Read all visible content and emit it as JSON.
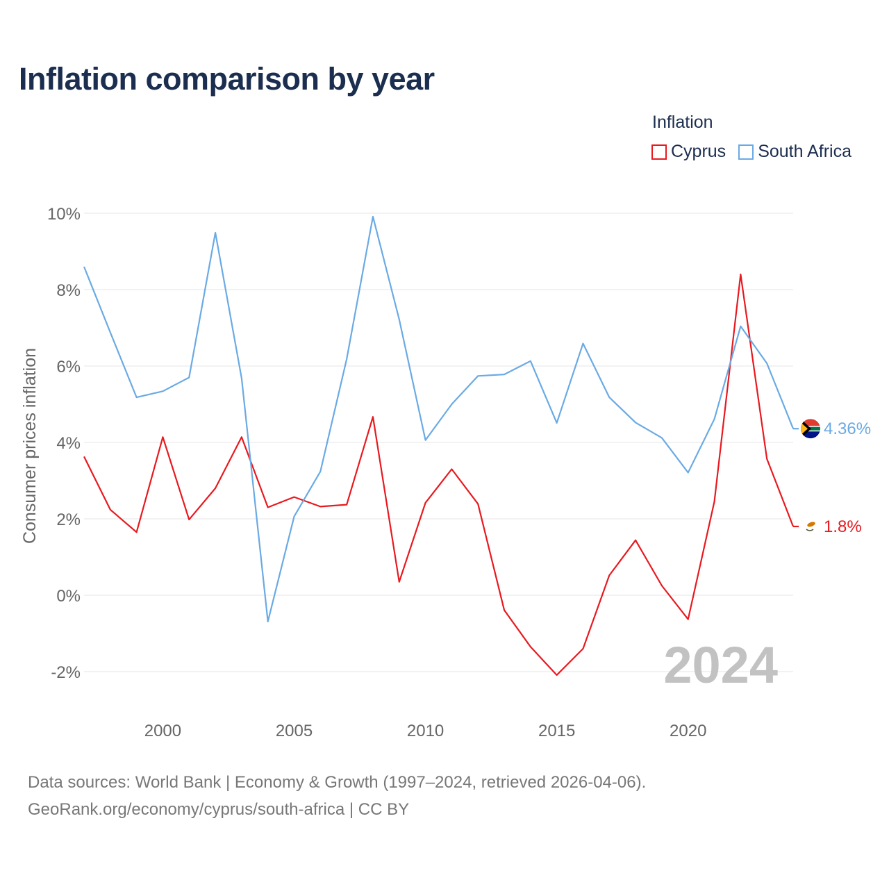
{
  "title": "Inflation comparison by year",
  "legend": {
    "title": "Inflation",
    "items": [
      {
        "label": "Cyprus",
        "color": "#e8191f"
      },
      {
        "label": "South Africa",
        "color": "#6aaae4"
      }
    ]
  },
  "year_watermark": "2024",
  "source": {
    "line1": "Data sources: World Bank | Economy & Growth (1997–2024, retrieved 2026-04-06).",
    "line2": "GeoRank.org/economy/cyprus/south-africa | CC BY"
  },
  "chart_data": {
    "type": "line",
    "title": "Inflation comparison by year",
    "xlabel": "",
    "ylabel": "Consumer prices inflation",
    "xlim": [
      1997,
      2024
    ],
    "ylim": [
      -3,
      10
    ],
    "x_ticks": [
      2000,
      2005,
      2010,
      2015,
      2020
    ],
    "y_ticks": [
      -2,
      0,
      2,
      4,
      6,
      8,
      10
    ],
    "y_tick_labels": [
      "-2%",
      "0%",
      "2%",
      "4%",
      "6%",
      "8%",
      "10%"
    ],
    "grid": true,
    "x": [
      1997,
      1998,
      1999,
      2000,
      2001,
      2002,
      2003,
      2004,
      2005,
      2006,
      2007,
      2008,
      2009,
      2010,
      2011,
      2012,
      2013,
      2014,
      2015,
      2016,
      2017,
      2018,
      2019,
      2020,
      2021,
      2022,
      2023,
      2024
    ],
    "series": [
      {
        "name": "Cyprus",
        "color": "#e8191f",
        "values": [
          3.63,
          2.24,
          1.65,
          4.14,
          1.98,
          2.8,
          4.14,
          2.3,
          2.57,
          2.32,
          2.37,
          4.67,
          0.35,
          2.42,
          3.3,
          2.39,
          -0.39,
          -1.35,
          -2.09,
          -1.4,
          0.52,
          1.44,
          0.25,
          -0.63,
          2.45,
          8.4,
          3.57,
          1.8
        ],
        "end_label": "1.8%"
      },
      {
        "name": "South Africa",
        "color": "#6aaae4",
        "values": [
          8.6,
          6.88,
          5.18,
          5.34,
          5.7,
          9.49,
          5.68,
          -0.69,
          2.06,
          3.24,
          6.18,
          9.91,
          7.22,
          4.06,
          5.0,
          5.74,
          5.78,
          6.13,
          4.51,
          6.59,
          5.18,
          4.52,
          4.12,
          3.21,
          4.61,
          7.04,
          6.07,
          4.36
        ],
        "end_label": "4.36%"
      }
    ]
  }
}
